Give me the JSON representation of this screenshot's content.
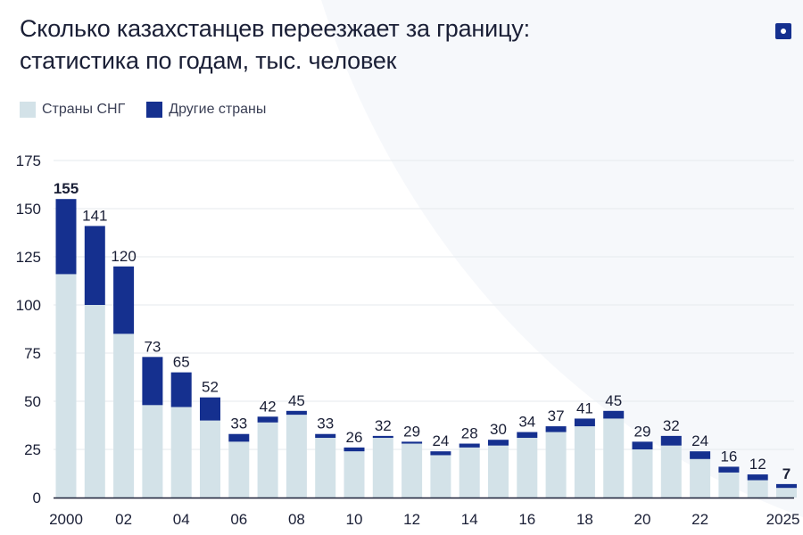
{
  "header": {
    "title_line1": "Сколько казахстанцев переезжает за границу:",
    "title_line2": "статистика по годам, тыс. человек"
  },
  "colors": {
    "cis": "#d3e2e8",
    "other": "#15308f",
    "grid": "#e6eaee",
    "text": "#1a1f36",
    "logo": "#15308f"
  },
  "legend": [
    {
      "label": "Страны СНГ",
      "color": "#d3e2e8"
    },
    {
      "label": "Другие страны",
      "color": "#15308f"
    }
  ],
  "chart_data": {
    "type": "bar",
    "stacked": true,
    "categories": [
      "2000",
      "2001",
      "2002",
      "2003",
      "2004",
      "2005",
      "2006",
      "2007",
      "2008",
      "2009",
      "2010",
      "2011",
      "2012",
      "2013",
      "2014",
      "2015",
      "2016",
      "2017",
      "2018",
      "2019",
      "2020",
      "2021",
      "2022",
      "2023",
      "2024",
      "2025"
    ],
    "x_tick_labels": [
      "2000",
      "",
      "02",
      "",
      "04",
      "",
      "06",
      "",
      "08",
      "",
      "10",
      "",
      "12",
      "",
      "14",
      "",
      "16",
      "",
      "18",
      "",
      "20",
      "",
      "22",
      "",
      "",
      "2025"
    ],
    "series": [
      {
        "name": "Страны СНГ",
        "values": [
          116,
          100,
          85,
          48,
          47,
          40,
          29,
          39,
          43,
          31,
          24,
          31,
          28,
          22,
          26,
          27,
          31,
          34,
          37,
          41,
          25,
          27,
          20,
          13,
          9,
          5
        ]
      },
      {
        "name": "Другие страны",
        "values": [
          39,
          41,
          35,
          25,
          18,
          12,
          4,
          3,
          2,
          2,
          2,
          1,
          1,
          2,
          2,
          3,
          3,
          3,
          4,
          4,
          4,
          5,
          4,
          3,
          3,
          2
        ]
      }
    ],
    "totals": [
      155,
      141,
      120,
      73,
      65,
      52,
      33,
      42,
      45,
      33,
      26,
      32,
      29,
      24,
      28,
      30,
      34,
      37,
      41,
      45,
      29,
      32,
      24,
      16,
      12,
      7
    ],
    "y_ticks": [
      0,
      25,
      50,
      75,
      100,
      125,
      150,
      175
    ],
    "ylim": [
      0,
      175
    ],
    "grid": true,
    "legend_position": "top-left",
    "xlabel": "",
    "ylabel": ""
  }
}
